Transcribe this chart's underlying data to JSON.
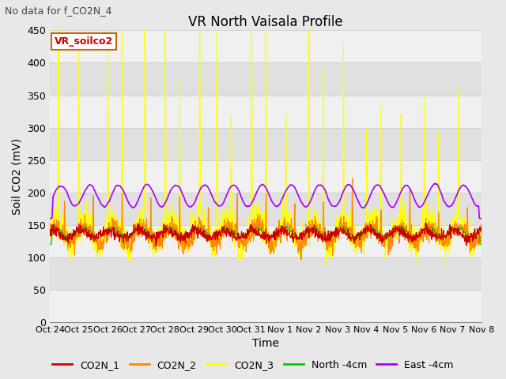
{
  "title": "VR North Vaisala Profile",
  "subtitle": "No data for f_CO2N_4",
  "xlabel": "Time",
  "ylabel": "Soil CO2 (mV)",
  "ylim": [
    0,
    450
  ],
  "yticks": [
    0,
    50,
    100,
    150,
    200,
    250,
    300,
    350,
    400,
    450
  ],
  "x_labels": [
    "Oct 24",
    "Oct 25",
    "Oct 26",
    "Oct 27",
    "Oct 28",
    "Oct 29",
    "Oct 30",
    "Oct 31",
    "Nov 1",
    "Nov 2",
    "Nov 3",
    "Nov 4",
    "Nov 5",
    "Nov 6",
    "Nov 7",
    "Nov 8"
  ],
  "legend_label_box": "VR_soilco2",
  "series": {
    "CO2N_1": {
      "color": "#cc0000",
      "lw": 0.8
    },
    "CO2N_2": {
      "color": "#ff8800",
      "lw": 0.8
    },
    "CO2N_3": {
      "color": "#ffff00",
      "lw": 0.8
    },
    "North -4cm": {
      "color": "#00cc00",
      "lw": 1.0
    },
    "East -4cm": {
      "color": "#aa00ff",
      "lw": 1.2
    }
  },
  "background_color": "#e8e8e8",
  "plot_bg_color": "#ffffff",
  "band_colors": [
    "#f0f0f0",
    "#e0e0e0"
  ],
  "grid_color": "#cccccc",
  "figsize": [
    6.4,
    4.8
  ],
  "dpi": 100
}
